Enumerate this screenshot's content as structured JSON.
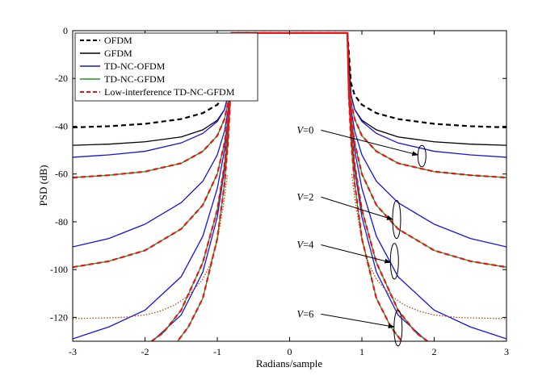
{
  "chart_data": {
    "type": "line",
    "title": "",
    "xlabel": "Radians/sample",
    "ylabel": "PSD (dB)",
    "xlim": [
      -3,
      3
    ],
    "ylim": [
      -130,
      0
    ],
    "xticks": [
      -3,
      -2,
      -1,
      0,
      1,
      2,
      3
    ],
    "xtick_labels": [
      "-3",
      "-2",
      "-1",
      "0",
      "1",
      "2",
      "3"
    ],
    "yticks": [
      0,
      -20,
      -40,
      -60,
      -80,
      -100,
      -120
    ],
    "ytick_labels": [
      "0",
      "-20",
      "-40",
      "-60",
      "-80",
      "-100",
      "-120"
    ],
    "grid": false,
    "legend_position": "top-left",
    "passband_edge": 0.79,
    "passband_level": -1,
    "legend": [
      {
        "label": "OFDM",
        "color": "#000000",
        "style": "dashed"
      },
      {
        "label": "GFDM",
        "color": "#000000",
        "style": "solid"
      },
      {
        "label": "TD-NC-OFDM",
        "color": "#1515e0",
        "style": "solid"
      },
      {
        "label": "TD-NC-GFDM",
        "color": "#1a9a1a",
        "style": "solid"
      },
      {
        "label": "Low-interference TD-NC-GFDM",
        "color": "#ee1111",
        "style": "dashed"
      }
    ],
    "series": [
      {
        "name": "OFDM",
        "color": "#000000",
        "style": "dashed",
        "x": [
          0.8,
          0.85,
          0.9,
          1.0,
          1.2,
          1.5,
          2.0,
          2.5,
          3.0
        ],
        "y": [
          -1,
          -22,
          -27,
          -31,
          -34.5,
          -37,
          -39,
          -40,
          -40.5
        ]
      },
      {
        "name": "GFDM",
        "color": "#000000",
        "style": "solid",
        "x": [
          0.8,
          0.85,
          0.9,
          1.0,
          1.2,
          1.5,
          2.0,
          2.5,
          3.0
        ],
        "y": [
          -1,
          -27,
          -33,
          -37.5,
          -41.5,
          -44.5,
          -46.5,
          -47.5,
          -48
        ]
      },
      {
        "name": "TD-NC-OFDM (V=0)",
        "color": "#1515e0",
        "style": "solid",
        "x": [
          0.8,
          0.82,
          0.85,
          0.9,
          1.0,
          1.2,
          1.5,
          2.0,
          2.5,
          3.0
        ],
        "y": [
          -1,
          -20,
          -27,
          -33,
          -38,
          -43,
          -47,
          -50.5,
          -52,
          -53
        ]
      },
      {
        "name": "TD-NC-OFDM (V=2)",
        "color": "#1515e0",
        "style": "solid",
        "x": [
          0.8,
          0.82,
          0.85,
          0.9,
          1.0,
          1.2,
          1.5,
          2.0,
          2.5,
          3.0
        ],
        "y": [
          -1,
          -22,
          -33,
          -42,
          -52,
          -63,
          -72,
          -81,
          -87,
          -90.5
        ]
      },
      {
        "name": "TD-NC-OFDM (V=4)",
        "color": "#1515e0",
        "style": "solid",
        "x": [
          0.8,
          0.82,
          0.85,
          0.9,
          1.0,
          1.2,
          1.5,
          2.0,
          2.5,
          2.75,
          3.0
        ],
        "y": [
          -1,
          -24,
          -37,
          -50,
          -66,
          -86,
          -103,
          -117,
          -124,
          -126.5,
          -129
        ]
      },
      {
        "name": "TD-NC-OFDM (V=6)",
        "color": "#1515e0",
        "style": "solid",
        "x": [
          0.8,
          0.82,
          0.85,
          0.9,
          1.0,
          1.2,
          1.5,
          1.9
        ],
        "y": [
          -1,
          -26,
          -41,
          -58,
          -78,
          -101,
          -119,
          -130
        ]
      },
      {
        "name": "TD-NC-GFDM (V=0)",
        "color": "#1a9a1a",
        "style": "solid",
        "x": [
          0.8,
          0.82,
          0.85,
          0.9,
          1.0,
          1.2,
          1.5,
          2.0,
          2.5,
          3.0
        ],
        "y": [
          -1,
          -22,
          -30,
          -37,
          -44,
          -50.5,
          -55.5,
          -59,
          -60.5,
          -61.5
        ]
      },
      {
        "name": "TD-NC-GFDM (V=2)",
        "color": "#1a9a1a",
        "style": "solid",
        "x": [
          0.8,
          0.82,
          0.85,
          0.9,
          1.0,
          1.2,
          1.5,
          2.0,
          2.5,
          3.0
        ],
        "y": [
          -1,
          -24,
          -36,
          -47,
          -60,
          -73,
          -83,
          -92,
          -96.5,
          -99
        ]
      },
      {
        "name": "TD-NC-GFDM (V=4)",
        "color": "#1a9a1a",
        "style": "solid",
        "x": [
          0.8,
          0.82,
          0.85,
          0.9,
          1.0,
          1.2,
          1.5,
          1.75,
          2.0
        ],
        "y": [
          -1,
          -26,
          -41,
          -56,
          -75,
          -97,
          -117,
          -126.5,
          -132
        ]
      },
      {
        "name": "TD-NC-GFDM (V=6)",
        "color": "#1a9a1a",
        "style": "solid",
        "x": [
          0.8,
          0.82,
          0.85,
          0.9,
          1.0,
          1.2,
          1.4,
          1.6
        ],
        "y": [
          -1,
          -28,
          -46,
          -64,
          -87,
          -112,
          -124,
          -132
        ]
      },
      {
        "name": "Low-interference TD-NC-GFDM (V=0)",
        "color": "#ee1111",
        "style": "dashed",
        "x": [
          0.8,
          0.82,
          0.85,
          0.9,
          1.0,
          1.2,
          1.5,
          2.0,
          2.5,
          3.0
        ],
        "y": [
          -1,
          -22,
          -30,
          -37,
          -44,
          -50.5,
          -55.5,
          -59,
          -60.5,
          -61.5
        ]
      },
      {
        "name": "Low-interference TD-NC-GFDM (V=2)",
        "color": "#ee1111",
        "style": "dashed",
        "x": [
          0.8,
          0.82,
          0.85,
          0.9,
          1.0,
          1.2,
          1.5,
          2.0,
          2.5,
          3.0
        ],
        "y": [
          -1,
          -24,
          -36,
          -47,
          -60,
          -73,
          -83,
          -92,
          -96.5,
          -99
        ]
      },
      {
        "name": "Low-interference TD-NC-GFDM (V=4)",
        "color": "#ee1111",
        "style": "dashed",
        "x": [
          0.8,
          0.82,
          0.85,
          0.9,
          1.0,
          1.2,
          1.5,
          1.75,
          2.0
        ],
        "y": [
          -1,
          -26,
          -41,
          -56,
          -75,
          -97,
          -117,
          -126.5,
          -132
        ]
      },
      {
        "name": "Low-interference TD-NC-GFDM (V=6)",
        "color": "#ee1111",
        "style": "dashed",
        "x": [
          0.8,
          0.82,
          0.85,
          0.9,
          1.0,
          1.2,
          1.4,
          1.6
        ],
        "y": [
          -1,
          -28,
          -46,
          -64,
          -87,
          -112,
          -124,
          -132
        ]
      },
      {
        "name": "Low-interference TD-NC-GFDM (V=6, floor)",
        "color": "#b34a12",
        "style": "dotted",
        "x": [
          0.86,
          0.9,
          1.0,
          1.1,
          1.2,
          1.4,
          1.6,
          1.8,
          2.0,
          2.3,
          2.6,
          3.0
        ],
        "y": [
          -60,
          -70,
          -88,
          -98,
          -104,
          -111,
          -115,
          -117.5,
          -119,
          -120,
          -120.3,
          -120.5
        ]
      }
    ],
    "annotations": [
      {
        "label": "V=0",
        "x_text": 0.1,
        "y_text": -43,
        "arrow_x": 1.83,
        "arrow_y": -52,
        "ellipse_y": [
          -48,
          -57
        ]
      },
      {
        "label": "V=2",
        "x_text": 0.1,
        "y_text": -71,
        "arrow_x": 1.48,
        "arrow_y": -79,
        "ellipse_y": [
          -71,
          -87
        ]
      },
      {
        "label": "V=4",
        "x_text": 0.1,
        "y_text": -91,
        "arrow_x": 1.45,
        "arrow_y": -97,
        "ellipse_y": [
          -89,
          -104
        ]
      },
      {
        "label": "V=6",
        "x_text": 0.1,
        "y_text": -120,
        "arrow_x": 1.5,
        "arrow_y": -124,
        "ellipse_y": [
          -117,
          -132
        ]
      }
    ]
  }
}
